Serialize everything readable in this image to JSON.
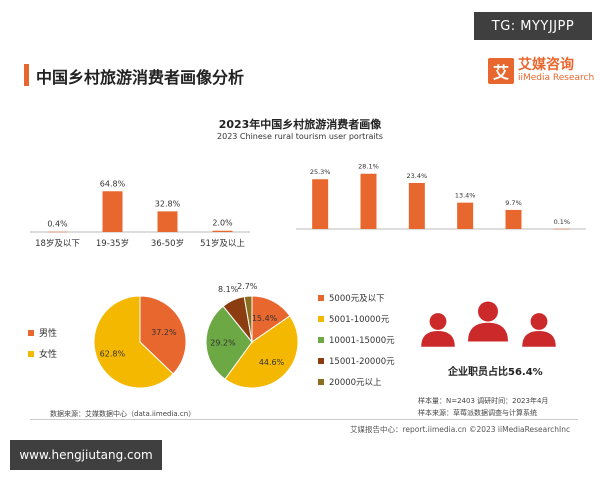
{
  "watermark_top": "TG: MYYJJPP",
  "watermark_bottom": "www.hengjiutang.com",
  "page_title": "中国乡村旅游消费者画像分析",
  "logo": {
    "mark": "艾",
    "name": "艾媒咨询",
    "sub": "iiMedia Research"
  },
  "people_caption": "企业职员占比56.4%",
  "sample_text": "样本量：N=2403  调研时间：2023年4月",
  "source_right": "样本来源：草莓派数据调查与计算系统",
  "source_left": "数据来源：艾媒数据中心（data.iimedia.cn）",
  "footer": "艾媒报告中心：report.iimedia.cn  ©2023 iiMediaResearchInc",
  "colors": {
    "orange": "#e8672e",
    "yellow": "#f5b800",
    "green": "#6ca843",
    "brown": "#8b3c10",
    "olive": "#8a6d1d",
    "people": "#cc2a2a"
  },
  "chart_data": [
    {
      "type": "bar",
      "title": "2023年中国乡村旅游消费者画像",
      "subtitle": "2023 Chinese rural tourism user portraits",
      "categories": [
        "18岁及以下",
        "19-35岁",
        "36-50岁",
        "51岁及以上"
      ],
      "values": [
        0.4,
        64.8,
        32.8,
        2.0
      ],
      "value_labels": [
        "0.4%",
        "64.8%",
        "32.8%",
        "2.0%"
      ],
      "ylim": [
        0,
        70
      ]
    },
    {
      "type": "bar",
      "categories": [
        "",
        "",
        "",
        "",
        "",
        ""
      ],
      "values": [
        25.3,
        28.1,
        23.4,
        13.4,
        9.7,
        0.1
      ],
      "value_labels": [
        "25.3%",
        "28.1%",
        "23.4%",
        "13.4%",
        "9.7%",
        "0.1%"
      ],
      "ylim": [
        0,
        30
      ]
    },
    {
      "type": "pie",
      "labels": [
        "男性",
        "女性"
      ],
      "values": [
        37.2,
        62.8
      ],
      "value_labels": [
        "37.2%",
        "62.8%"
      ],
      "colors": [
        "#e8672e",
        "#f5b800"
      ]
    },
    {
      "type": "pie",
      "labels": [
        "5000元及以下",
        "5001-10000元",
        "10001-15000元",
        "15001-20000元",
        "20000元以上"
      ],
      "values": [
        15.4,
        44.6,
        29.2,
        8.1,
        2.7
      ],
      "value_labels": [
        "15.4%",
        "44.6%",
        "29.2%",
        "8.1%",
        "2.7%"
      ],
      "colors": [
        "#e8672e",
        "#f5b800",
        "#6ca843",
        "#8b3c10",
        "#8a6d1d"
      ]
    }
  ]
}
